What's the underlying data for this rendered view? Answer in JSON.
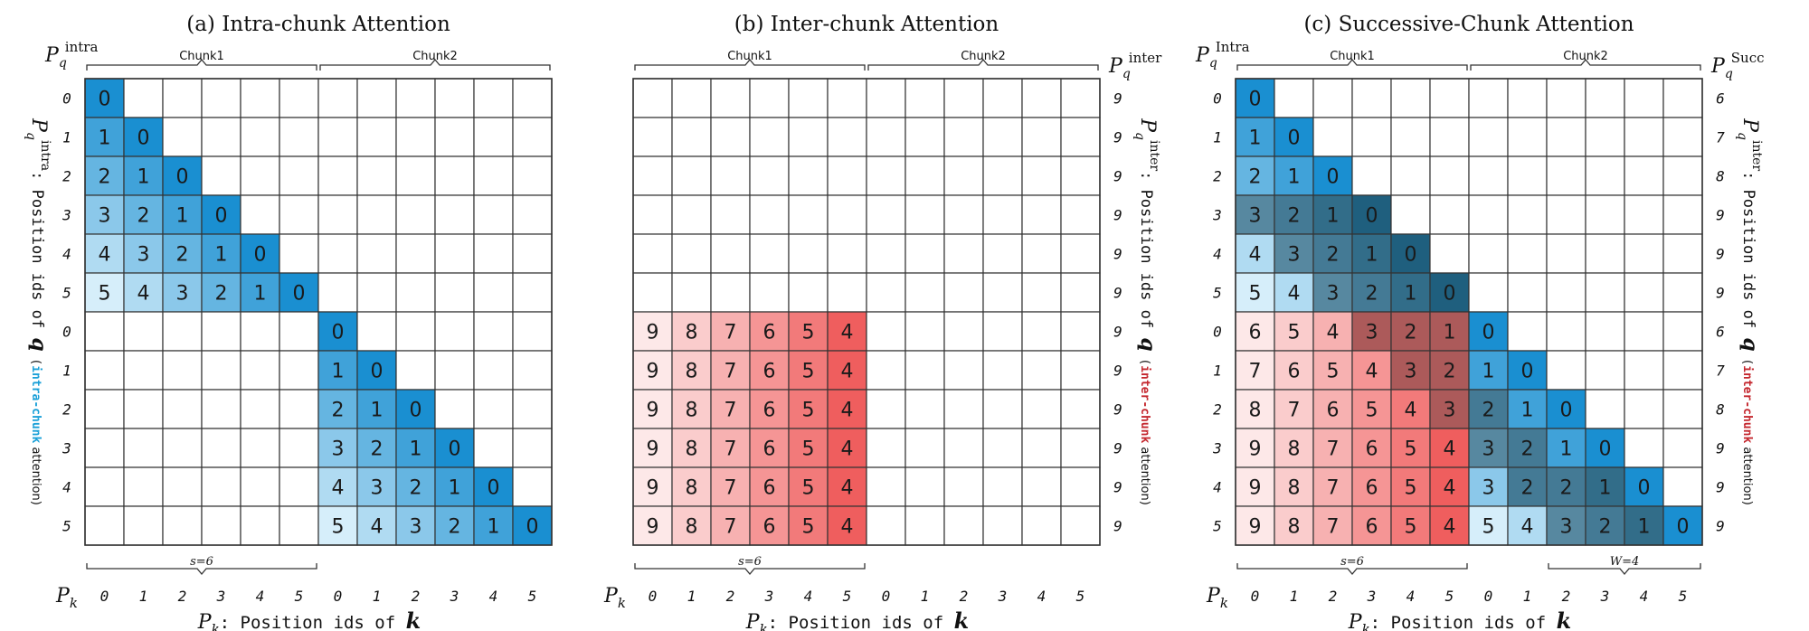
{
  "panels": [
    {
      "id": "intra",
      "title": "(a) Intra-chunk Attention",
      "left_label_base": "P",
      "left_label_sub": "q",
      "left_label_sup": "intra",
      "right_label_base": "",
      "right_label_sup": "",
      "chunk_labels": [
        "Chunk1",
        "Chunk2"
      ],
      "row_ids": [
        "0",
        "1",
        "2",
        "3",
        "4",
        "5",
        "0",
        "1",
        "2",
        "3",
        "4",
        "5"
      ],
      "right_ids": [],
      "col_ids": [
        "0",
        "1",
        "2",
        "3",
        "4",
        "5",
        "0",
        "1",
        "2",
        "3",
        "4",
        "5"
      ],
      "s_label": "s=6",
      "w_label": "",
      "cells": [
        "0...........",
        "10..........",
        "210.........",
        "3210........",
        "43210.......",
        "543210......",
        "......0.....",
        "......10....",
        "......210...",
        "......3210..",
        "......43210.",
        "......543210"
      ],
      "colors": [
        "B...........",
        "BB..........",
        "BBB.........",
        "BBBB........",
        "BBBBB.......",
        "BBBBBB......",
        "......B.....",
        "......BB....",
        "......BBB...",
        "......BBBB..",
        "......BBBBB.",
        "......BBBBBB"
      ],
      "side_caption_pre": ": Position ids of",
      "side_caption_colored": "intra-chunk",
      "side_caption_post": "attention)",
      "side_caption_color": "#1aa0d8"
    },
    {
      "id": "inter",
      "title": "(b) Inter-chunk Attention",
      "left_label_base": "",
      "left_label_sub": "",
      "left_label_sup": "",
      "right_label_base": "P",
      "right_label_sup": "inter",
      "chunk_labels": [
        "Chunk1",
        "Chunk2"
      ],
      "row_ids": [],
      "right_ids": [
        "9",
        "9",
        "9",
        "9",
        "9",
        "9",
        "9",
        "9",
        "9",
        "9",
        "9",
        "9"
      ],
      "col_ids": [
        "0",
        "1",
        "2",
        "3",
        "4",
        "5",
        "0",
        "1",
        "2",
        "3",
        "4",
        "5"
      ],
      "s_label": "s=6",
      "w_label": "",
      "cells": [
        "............",
        "............",
        "............",
        "............",
        "............",
        "............",
        "987654......",
        "987654......",
        "987654......",
        "987654......",
        "987654......",
        "987654......"
      ],
      "colors": [
        "............",
        "............",
        "............",
        "............",
        "............",
        "............",
        "RRRRRR......",
        "RRRRRR......",
        "RRRRRR......",
        "RRRRRR......",
        "RRRRRR......",
        "RRRRRR......"
      ],
      "side_caption_pre": ": Position ids of",
      "side_caption_colored": "inter-chunk",
      "side_caption_post": "attention)",
      "side_caption_color": "#c4272e"
    },
    {
      "id": "succ",
      "title": "(c) Successive-Chunk Attention",
      "left_label_base": "P",
      "left_label_sub": "q",
      "left_label_sup": "Intra",
      "right_label_base": "P",
      "right_label_sup": "Succ",
      "chunk_labels": [
        "Chunk1",
        "Chunk2"
      ],
      "row_ids": [
        "0",
        "1",
        "2",
        "3",
        "4",
        "5",
        "0",
        "1",
        "2",
        "3",
        "4",
        "5"
      ],
      "right_ids": [
        "6",
        "7",
        "8",
        "9",
        "9",
        "9",
        "6",
        "7",
        "8",
        "9",
        "9",
        "9"
      ],
      "col_ids": [
        "0",
        "1",
        "2",
        "3",
        "4",
        "5",
        "0",
        "1",
        "2",
        "3",
        "4",
        "5"
      ],
      "s_label": "s=6",
      "w_label": "W=4",
      "cells": [
        "0...........",
        "10..........",
        "210.........",
        "3210........",
        "43210.......",
        "543210......",
        "6543210.....",
        "76543210....",
        "876543210...",
        "9876543210..",
        "98765432210.",
        "987654543210"
      ],
      "colors": [
        "B...........",
        "BB..........",
        "BBB.........",
        "DDDD........",
        "BDDDD.......",
        "BBDDDD......",
        "RRRDDDB.....",
        "RRRRDDBB....",
        "RRRRRDDBB...",
        "RRRRRRDDBB..",
        "RRRRRRBDDDB.",
        "RRRRRRBBDDDB"
      ],
      "side_caption_pre": ": Position ids of",
      "side_caption_colored": "inter-chunk",
      "side_caption_post": "attention)",
      "side_caption_color": "#c4272e"
    }
  ],
  "axis_caption_pre": ": Position ids of",
  "axis_caption_var": "k",
  "pk_label": "P",
  "pk_sub": "k",
  "colors": {
    "blue_light": "#d6eefa",
    "blue_dark": "#1a8fd1",
    "red_light": "#fde8e8",
    "red_dark": "#ef5e5e",
    "dark_overlay": "#1f5f7e",
    "grid": "#333333"
  }
}
